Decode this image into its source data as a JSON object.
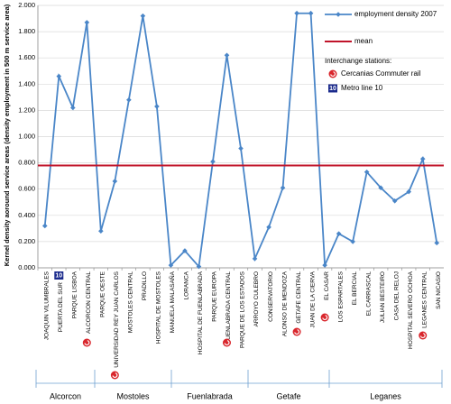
{
  "chart_data": {
    "type": "line",
    "y_label": "Kernel density aoround service areas  (density employment in 500 m service area)",
    "categories": [
      "JOAQUIN VILUMBRALES",
      "PUERTA DEL SUR",
      "PARQUE LISBOA",
      "ALCORCON CENTRAL",
      "PARQUE OESTE",
      "UNIVERSIDAD REY JUAN CARLOS",
      "MOSTOLES CENTRAL",
      "PRADILLO",
      "HOSPITAL DE MOSTOLES",
      "MANUELA MALASAÑA",
      "LORANCA",
      "HOSPITAL DE FUENLABRADA",
      "PARQUE EUROPA",
      "FUENLABRADA CENTRAL",
      "PARQUE DE LOS ESTADOS",
      "ARROYO CULEBRO",
      "CONSERVATORIO",
      "ALONSO DE MENDOZA",
      "GETAFE CENTRAL",
      "JUAN DE LA  CIERVA",
      "EL CASAR",
      "LOS ESPARTALES",
      "EL BERCIAL",
      "EL CARRASCAL",
      "JULIAN BESTEIRO",
      "CASA DEL RELOJ",
      "HOSPITAL SEVERO OCHOA",
      "LEGANES CENTRAL",
      "SAN NICASIO"
    ],
    "series": [
      {
        "name": "employment density 2007",
        "color": "#4a86c8",
        "values": [
          0.32,
          1.46,
          1.22,
          1.87,
          0.28,
          0.66,
          1.28,
          1.92,
          1.23,
          0.02,
          0.13,
          0.01,
          0.81,
          1.62,
          0.91,
          0.07,
          0.31,
          0.61,
          1.94,
          1.94,
          0.02,
          0.26,
          0.2,
          0.73,
          0.61,
          0.51,
          0.58,
          0.83,
          0.19
        ]
      },
      {
        "name": "mean",
        "color": "#c0142a",
        "values": [
          0.78,
          0.78,
          0.78,
          0.78,
          0.78,
          0.78,
          0.78,
          0.78,
          0.78,
          0.78,
          0.78,
          0.78,
          0.78,
          0.78,
          0.78,
          0.78,
          0.78,
          0.78,
          0.78,
          0.78,
          0.78,
          0.78,
          0.78,
          0.78,
          0.78,
          0.78,
          0.78,
          0.78,
          0.78
        ]
      }
    ],
    "ylim": [
      0,
      2
    ],
    "yticks": [
      {
        "value": 0,
        "label": "0.000"
      },
      {
        "value": 0.2,
        "label": "0.200"
      },
      {
        "value": 0.4,
        "label": "0.400"
      },
      {
        "value": 0.6,
        "label": "0.600"
      },
      {
        "value": 0.8,
        "label": "0.800"
      },
      {
        "value": 1,
        "label": "1.000"
      },
      {
        "value": 1.2,
        "label": "1.200"
      },
      {
        "value": 1.4,
        "label": "1.400"
      },
      {
        "value": 1.6,
        "label": "1.600"
      },
      {
        "value": 1.8,
        "label": "1.800"
      },
      {
        "value": 2,
        "label": "2.000"
      }
    ],
    "legend_title": "Interchange stations:",
    "legend_cercanias": "Cercanias Commuter rail",
    "legend_metro": "Metro line 10",
    "metro_icon": "10",
    "groups": [
      "Alcorcon",
      "Mostoles",
      "Fuenlabrada",
      "Getafe",
      "Leganes"
    ]
  }
}
